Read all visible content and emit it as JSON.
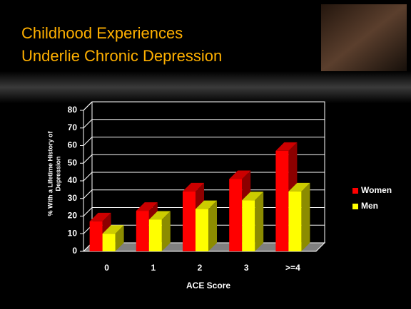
{
  "slide": {
    "title": [
      "Childhood Experiences",
      "Underlie Chronic Depression"
    ]
  },
  "chart_data": {
    "type": "bar3d",
    "ylabel": [
      "% With a Lifetime History of",
      "Depression"
    ],
    "xlabel": "ACE Score",
    "categories": [
      "0",
      "1",
      "2",
      "3",
      ">=4"
    ],
    "series": [
      {
        "name": "Women",
        "color": "#ff0000",
        "values": [
          17,
          23,
          34,
          41,
          57
        ]
      },
      {
        "name": "Men",
        "color": "#ffff00",
        "values": [
          10,
          18,
          24,
          29,
          34
        ]
      }
    ],
    "ylim": [
      0,
      80
    ],
    "yticks": [
      0,
      10,
      20,
      30,
      40,
      50,
      60,
      70,
      80
    ],
    "grid": true,
    "legend": "right"
  }
}
